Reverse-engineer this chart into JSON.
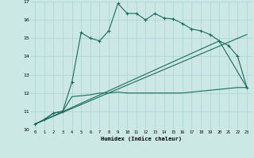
{
  "xlabel": "Humidex (Indice chaleur)",
  "bg_color": "#cce8e4",
  "grid_color": "#aad4cf",
  "line_color": "#1a6b5a",
  "xlim": [
    -0.5,
    23.5
  ],
  "ylim": [
    10,
    17
  ],
  "xticks": [
    0,
    1,
    2,
    3,
    4,
    5,
    6,
    7,
    8,
    9,
    10,
    11,
    12,
    13,
    14,
    15,
    16,
    17,
    18,
    19,
    20,
    21,
    22,
    23
  ],
  "yticks": [
    10,
    11,
    12,
    13,
    14,
    15,
    16,
    17
  ],
  "series1_x": [
    0,
    1,
    2,
    3,
    4,
    5,
    6,
    7,
    8,
    9,
    10,
    11,
    12,
    13,
    14,
    15,
    16,
    17,
    18,
    19,
    20,
    21,
    22,
    23
  ],
  "series1_y": [
    10.3,
    10.55,
    10.9,
    11.0,
    12.6,
    15.3,
    15.0,
    14.85,
    15.4,
    16.9,
    16.35,
    16.35,
    16.0,
    16.35,
    16.1,
    16.05,
    15.8,
    15.5,
    15.4,
    15.2,
    14.85,
    14.6,
    14.0,
    12.3
  ],
  "series2_x": [
    0,
    1,
    2,
    3,
    4,
    5,
    6,
    7,
    8,
    9,
    10,
    11,
    12,
    13,
    14,
    15,
    16,
    17,
    18,
    19,
    20,
    21,
    22,
    23
  ],
  "series2_y": [
    10.3,
    10.55,
    10.9,
    11.0,
    11.8,
    11.85,
    11.9,
    12.0,
    12.0,
    12.05,
    12.0,
    12.0,
    12.0,
    12.0,
    12.0,
    12.0,
    12.0,
    12.05,
    12.1,
    12.15,
    12.2,
    12.25,
    12.3,
    12.3
  ],
  "series3_x": [
    0,
    23
  ],
  "series3_y": [
    10.3,
    15.2
  ],
  "series4_x": [
    0,
    20,
    23
  ],
  "series4_y": [
    10.3,
    14.85,
    12.3
  ]
}
